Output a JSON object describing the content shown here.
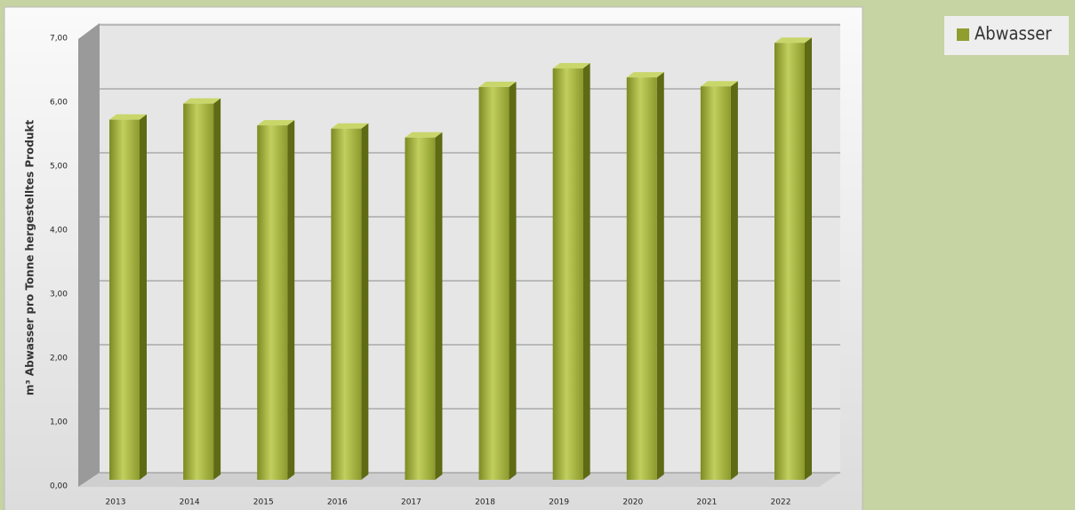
{
  "chart_data": {
    "type": "bar",
    "y_label": "m³ Abwasser pro Tonne hergestelltes Produkt",
    "categories": [
      "2013",
      "2014",
      "2015",
      "2016",
      "2017",
      "2018",
      "2019",
      "2020",
      "2021",
      "2022"
    ],
    "series": [
      {
        "name": "Abwasser",
        "color": "#9aa93a",
        "values": [
          5.63,
          5.88,
          5.54,
          5.49,
          5.35,
          6.14,
          6.43,
          6.29,
          6.15,
          6.83
        ]
      }
    ],
    "ylim": [
      0,
      7
    ],
    "yticks": [
      {
        "value": 0,
        "label": "0,00"
      },
      {
        "value": 1,
        "label": "1,00"
      },
      {
        "value": 2,
        "label": "2,00"
      },
      {
        "value": 3,
        "label": "3,00"
      },
      {
        "value": 4,
        "label": "4,00"
      },
      {
        "value": 5,
        "label": "5,00"
      },
      {
        "value": 6,
        "label": "6,00"
      },
      {
        "value": 7,
        "label": "7,00"
      }
    ],
    "grid": true
  }
}
